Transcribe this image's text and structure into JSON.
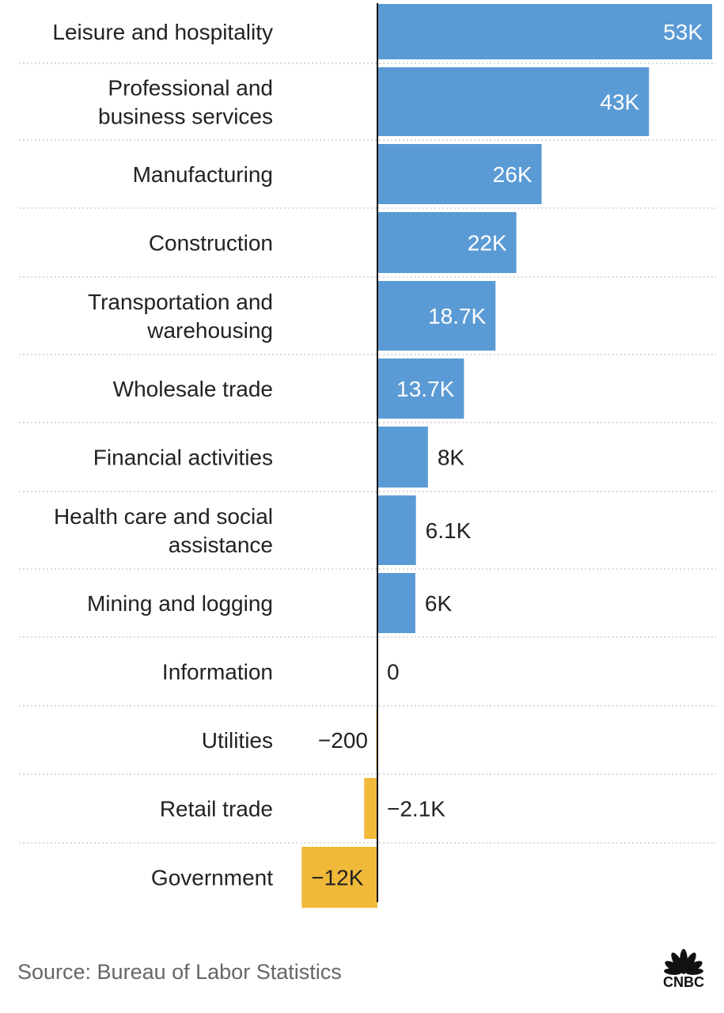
{
  "chart_data": {
    "type": "bar",
    "orientation": "horizontal",
    "categories": [
      [
        "Leisure and hospitality"
      ],
      [
        "Professional and",
        "business services"
      ],
      [
        "Manufacturing"
      ],
      [
        "Construction"
      ],
      [
        "Transportation and",
        "warehousing"
      ],
      [
        "Wholesale trade"
      ],
      [
        "Financial activities"
      ],
      [
        "Health care and social",
        "assistance"
      ],
      [
        "Mining and logging"
      ],
      [
        "Information"
      ],
      [
        "Utilities"
      ],
      [
        "Retail trade"
      ],
      [
        "Government"
      ]
    ],
    "values": [
      53000,
      43000,
      26000,
      22000,
      18700,
      13700,
      8000,
      6100,
      6000,
      0,
      -200,
      -2100,
      -12000
    ],
    "value_labels": [
      "53K",
      "43K",
      "26K",
      "22K",
      "18.7K",
      "13.7K",
      "8K",
      "6.1K",
      "6K",
      "0",
      "−200",
      "−2.1K",
      "−12K"
    ],
    "positive_color": "#5B9BD5",
    "negative_color": "#F0B93A",
    "grid": false,
    "legend": "none"
  },
  "footer": {
    "source": "Source: Bureau of Labor Statistics",
    "logo_text": "CNBC"
  }
}
